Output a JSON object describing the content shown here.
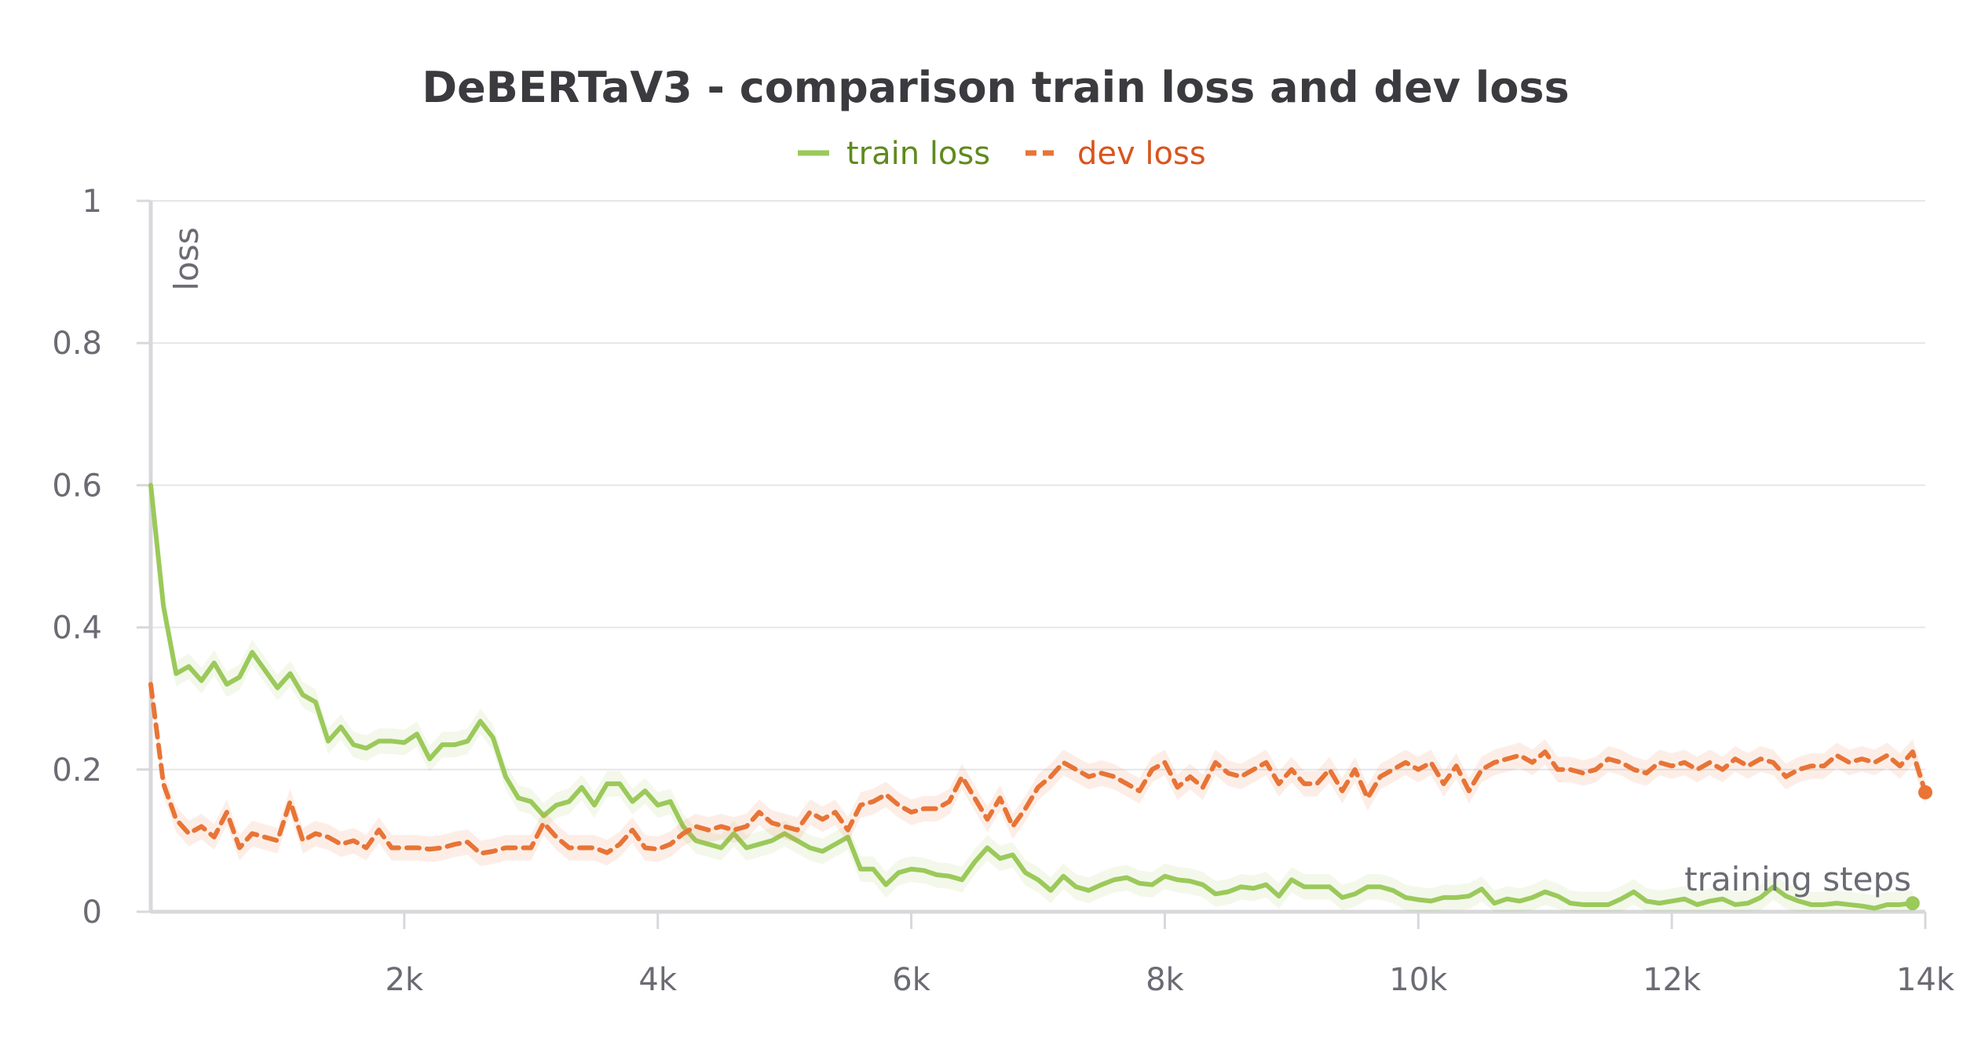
{
  "chart_data": {
    "type": "line",
    "title": "DeBERTaV3 - comparison train loss and dev loss",
    "xlabel": "training steps",
    "ylabel": "loss",
    "xlim": [
      0,
      14000
    ],
    "ylim": [
      0,
      1
    ],
    "grid": "horizontal",
    "legend": "top-center",
    "x_ticks": [
      {
        "value": 2000,
        "label": "2k"
      },
      {
        "value": 4000,
        "label": "4k"
      },
      {
        "value": 6000,
        "label": "6k"
      },
      {
        "value": 8000,
        "label": "8k"
      },
      {
        "value": 10000,
        "label": "10k"
      },
      {
        "value": 12000,
        "label": "12k"
      },
      {
        "value": 14000,
        "label": "14k"
      }
    ],
    "y_ticks": [
      {
        "value": 0,
        "label": "0"
      },
      {
        "value": 0.2,
        "label": "0.2"
      },
      {
        "value": 0.4,
        "label": "0.4"
      },
      {
        "value": 0.6,
        "label": "0.6"
      },
      {
        "value": 0.8,
        "label": "0.8"
      },
      {
        "value": 1,
        "label": "1"
      }
    ],
    "series": [
      {
        "name": "train loss",
        "color": "#9bc95a",
        "legend_text_color": "#5f8a1e",
        "dash": "solid",
        "x": [
          0,
          100,
          200,
          300,
          400,
          500,
          600,
          700,
          800,
          900,
          1000,
          1100,
          1200,
          1300,
          1400,
          1500,
          1600,
          1700,
          1800,
          1900,
          2000,
          2100,
          2200,
          2300,
          2400,
          2500,
          2600,
          2700,
          2800,
          2900,
          3000,
          3100,
          3200,
          3300,
          3400,
          3500,
          3600,
          3700,
          3800,
          3900,
          4000,
          4100,
          4200,
          4300,
          4400,
          4500,
          4600,
          4700,
          4800,
          4900,
          5000,
          5100,
          5200,
          5300,
          5400,
          5500,
          5600,
          5700,
          5800,
          5900,
          6000,
          6100,
          6200,
          6300,
          6400,
          6500,
          6600,
          6700,
          6800,
          6900,
          7000,
          7100,
          7200,
          7300,
          7400,
          7500,
          7600,
          7700,
          7800,
          7900,
          8000,
          8100,
          8200,
          8300,
          8400,
          8500,
          8600,
          8700,
          8800,
          8900,
          9000,
          9100,
          9200,
          9300,
          9400,
          9500,
          9600,
          9700,
          9800,
          9900,
          10000,
          10100,
          10200,
          10300,
          10400,
          10500,
          10600,
          10700,
          10800,
          10900,
          11000,
          11100,
          11200,
          11300,
          11400,
          11500,
          11600,
          11700,
          11800,
          11900,
          12000,
          12100,
          12200,
          12300,
          12400,
          12500,
          12600,
          12700,
          12800,
          12900,
          13000,
          13100,
          13200,
          13300,
          13400,
          13500,
          13600,
          13700,
          13800,
          13900
        ],
        "y": [
          0.6,
          0.43,
          0.335,
          0.345,
          0.325,
          0.35,
          0.32,
          0.33,
          0.365,
          0.34,
          0.315,
          0.335,
          0.305,
          0.295,
          0.24,
          0.26,
          0.235,
          0.23,
          0.24,
          0.24,
          0.238,
          0.25,
          0.215,
          0.235,
          0.235,
          0.24,
          0.268,
          0.245,
          0.19,
          0.16,
          0.155,
          0.135,
          0.15,
          0.155,
          0.175,
          0.15,
          0.18,
          0.18,
          0.155,
          0.17,
          0.15,
          0.155,
          0.12,
          0.1,
          0.095,
          0.09,
          0.11,
          0.09,
          0.095,
          0.1,
          0.11,
          0.1,
          0.09,
          0.085,
          0.095,
          0.105,
          0.06,
          0.06,
          0.038,
          0.055,
          0.06,
          0.058,
          0.052,
          0.05,
          0.045,
          0.07,
          0.09,
          0.075,
          0.08,
          0.055,
          0.045,
          0.03,
          0.05,
          0.035,
          0.03,
          0.038,
          0.045,
          0.048,
          0.04,
          0.038,
          0.05,
          0.045,
          0.043,
          0.038,
          0.025,
          0.028,
          0.035,
          0.033,
          0.038,
          0.022,
          0.045,
          0.035,
          0.035,
          0.035,
          0.02,
          0.025,
          0.035,
          0.035,
          0.03,
          0.02,
          0.017,
          0.015,
          0.02,
          0.02,
          0.022,
          0.032,
          0.012,
          0.018,
          0.015,
          0.02,
          0.028,
          0.022,
          0.012,
          0.01,
          0.01,
          0.01,
          0.018,
          0.028,
          0.015,
          0.012,
          0.015,
          0.018,
          0.01,
          0.015,
          0.018,
          0.01,
          0.012,
          0.02,
          0.035,
          0.022,
          0.015,
          0.01,
          0.01,
          0.012,
          0.01,
          0.008,
          0.005,
          0.01,
          0.01,
          0.012
        ]
      },
      {
        "name": "dev loss",
        "color": "#e87436",
        "legend_text_color": "#d9541e",
        "dash": "dashed",
        "x": [
          0,
          100,
          200,
          300,
          400,
          500,
          600,
          700,
          800,
          900,
          1000,
          1100,
          1200,
          1300,
          1400,
          1500,
          1600,
          1700,
          1800,
          1900,
          2000,
          2100,
          2200,
          2300,
          2400,
          2500,
          2600,
          2700,
          2800,
          2900,
          3000,
          3100,
          3200,
          3300,
          3400,
          3500,
          3600,
          3700,
          3800,
          3900,
          4000,
          4100,
          4200,
          4300,
          4400,
          4500,
          4600,
          4700,
          4800,
          4900,
          5000,
          5100,
          5200,
          5300,
          5400,
          5500,
          5600,
          5700,
          5800,
          5900,
          6000,
          6100,
          6200,
          6300,
          6400,
          6500,
          6600,
          6700,
          6800,
          6900,
          7000,
          7100,
          7200,
          7300,
          7400,
          7500,
          7600,
          7700,
          7800,
          7900,
          8000,
          8100,
          8200,
          8300,
          8400,
          8500,
          8600,
          8700,
          8800,
          8900,
          9000,
          9100,
          9200,
          9300,
          9400,
          9500,
          9600,
          9700,
          9800,
          9900,
          10000,
          10100,
          10200,
          10300,
          10400,
          10500,
          10600,
          10700,
          10800,
          10900,
          11000,
          11100,
          11200,
          11300,
          11400,
          11500,
          11600,
          11700,
          11800,
          11900,
          12000,
          12100,
          12200,
          12300,
          12400,
          12500,
          12600,
          12700,
          12800,
          12900,
          13000,
          13100,
          13200,
          13300,
          13400,
          13500,
          13600,
          13700,
          13800,
          13900,
          14000
        ],
        "y": [
          0.32,
          0.18,
          0.13,
          0.11,
          0.12,
          0.105,
          0.14,
          0.09,
          0.11,
          0.105,
          0.1,
          0.155,
          0.1,
          0.11,
          0.105,
          0.095,
          0.1,
          0.09,
          0.115,
          0.09,
          0.09,
          0.09,
          0.088,
          0.09,
          0.095,
          0.098,
          0.082,
          0.085,
          0.09,
          0.09,
          0.09,
          0.125,
          0.105,
          0.09,
          0.09,
          0.09,
          0.083,
          0.095,
          0.115,
          0.09,
          0.088,
          0.095,
          0.11,
          0.12,
          0.115,
          0.12,
          0.115,
          0.12,
          0.14,
          0.125,
          0.12,
          0.115,
          0.14,
          0.13,
          0.14,
          0.115,
          0.15,
          0.155,
          0.165,
          0.15,
          0.14,
          0.145,
          0.145,
          0.155,
          0.19,
          0.16,
          0.13,
          0.16,
          0.12,
          0.145,
          0.175,
          0.19,
          0.21,
          0.2,
          0.19,
          0.195,
          0.19,
          0.18,
          0.17,
          0.2,
          0.21,
          0.175,
          0.19,
          0.175,
          0.21,
          0.195,
          0.19,
          0.2,
          0.21,
          0.18,
          0.2,
          0.18,
          0.18,
          0.2,
          0.17,
          0.2,
          0.16,
          0.19,
          0.2,
          0.21,
          0.2,
          0.21,
          0.18,
          0.205,
          0.17,
          0.2,
          0.21,
          0.215,
          0.22,
          0.21,
          0.225,
          0.2,
          0.2,
          0.195,
          0.2,
          0.215,
          0.21,
          0.2,
          0.195,
          0.21,
          0.205,
          0.21,
          0.2,
          0.21,
          0.2,
          0.215,
          0.205,
          0.215,
          0.21,
          0.19,
          0.2,
          0.205,
          0.205,
          0.22,
          0.21,
          0.215,
          0.21,
          0.22,
          0.205,
          0.225,
          0.168
        ]
      }
    ]
  }
}
